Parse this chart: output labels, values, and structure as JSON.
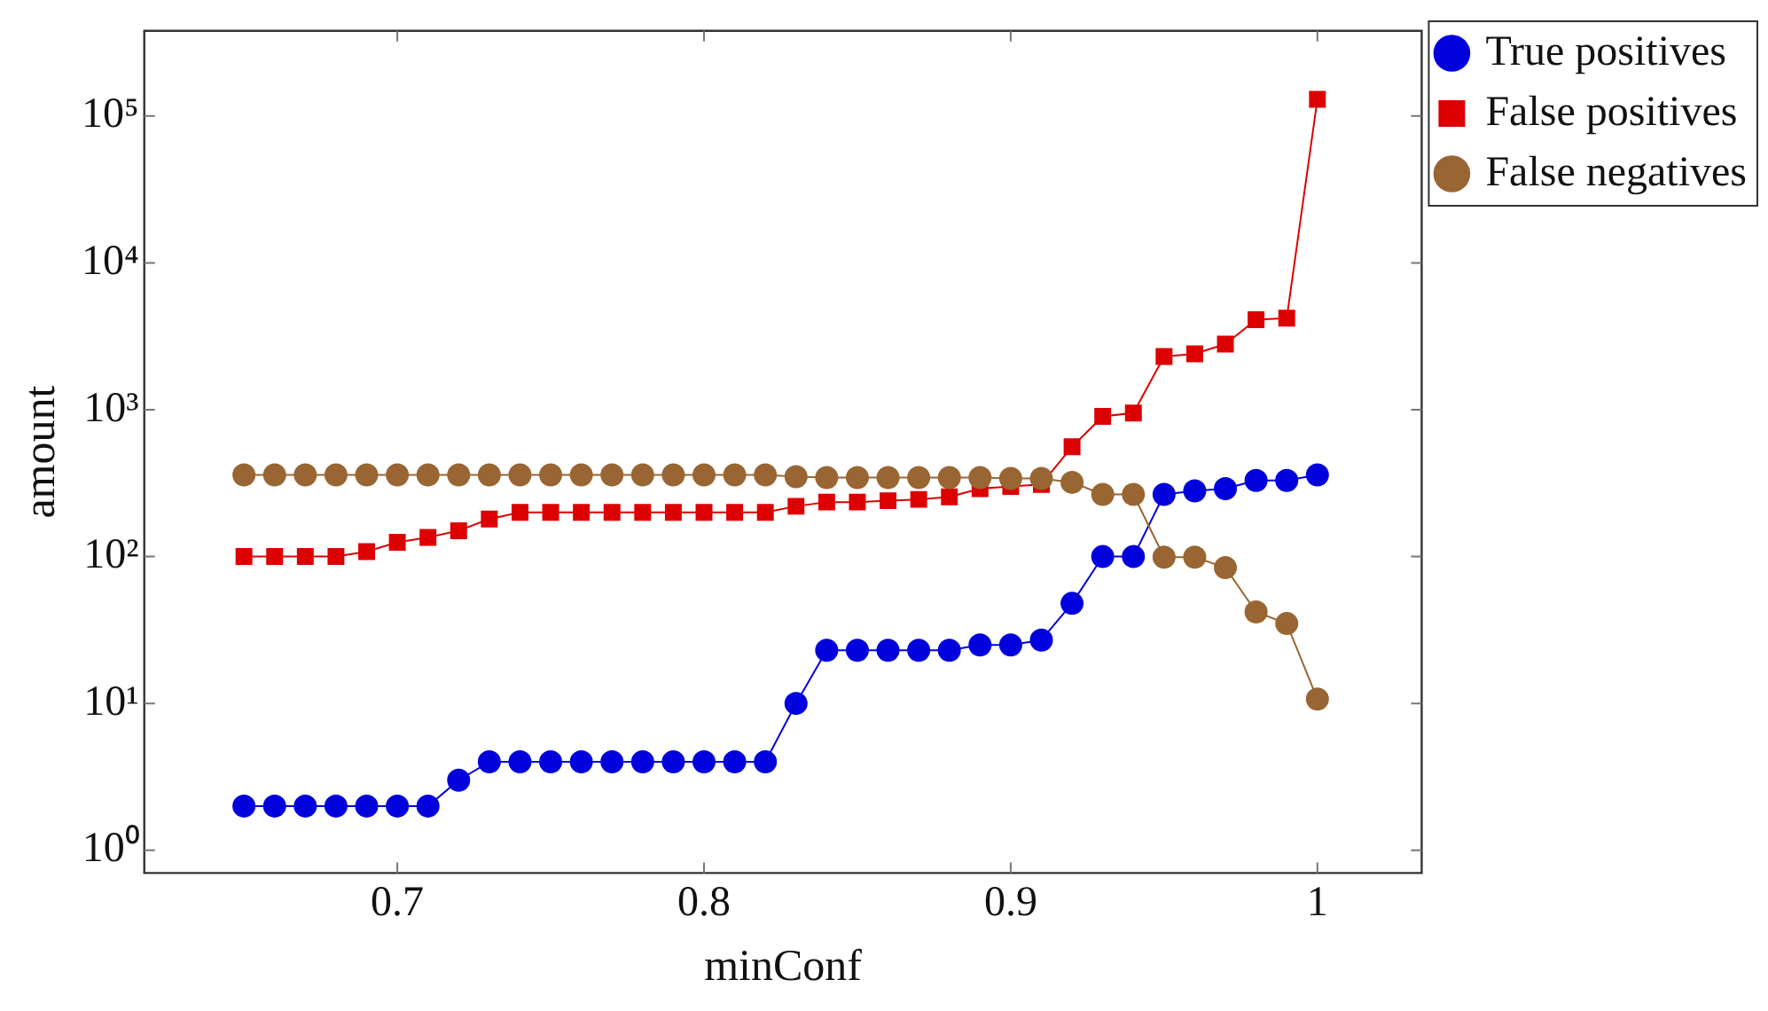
{
  "chart_data": {
    "type": "line",
    "xlabel": "minConf",
    "ylabel": "amount",
    "x": [
      0.65,
      0.66,
      0.67,
      0.68,
      0.69,
      0.7,
      0.71,
      0.72,
      0.73,
      0.74,
      0.75,
      0.76,
      0.77,
      0.78,
      0.79,
      0.8,
      0.81,
      0.82,
      0.83,
      0.84,
      0.85,
      0.86,
      0.87,
      0.88,
      0.89,
      0.9,
      0.91,
      0.92,
      0.93,
      0.94,
      0.95,
      0.96,
      0.97,
      0.98,
      0.99,
      1
    ],
    "series": [
      {
        "name": "True positives",
        "color": "#0000dd",
        "marker": "circle",
        "values": [
          2,
          2,
          2,
          2,
          2,
          2,
          2,
          3,
          4,
          4,
          4,
          4,
          4,
          4,
          4,
          4,
          4,
          4,
          10,
          23,
          23,
          23,
          23,
          23,
          25,
          25,
          27,
          48,
          100,
          100,
          265,
          280,
          290,
          330,
          330,
          360
        ]
      },
      {
        "name": "False positives",
        "color": "#dd0000",
        "marker": "square",
        "values": [
          100,
          100,
          100,
          100,
          108,
          125,
          135,
          150,
          180,
          200,
          200,
          200,
          200,
          200,
          200,
          200,
          200,
          200,
          220,
          235,
          235,
          240,
          245,
          255,
          290,
          300,
          310,
          560,
          900,
          950,
          2300,
          2400,
          2800,
          4100,
          4200,
          130000
        ]
      },
      {
        "name": "False negatives",
        "color": "#996633",
        "marker": "circle",
        "values": [
          360,
          360,
          360,
          360,
          360,
          360,
          360,
          360,
          360,
          360,
          360,
          360,
          360,
          360,
          360,
          360,
          360,
          360,
          350,
          345,
          345,
          345,
          345,
          345,
          345,
          340,
          340,
          320,
          265,
          265,
          99,
          99,
          84,
          42,
          35,
          10.7
        ]
      }
    ],
    "log": "y",
    "xlim": [
      0.6175,
      1.034
    ],
    "ylim": [
      0.72,
      380000
    ],
    "xticks": [
      0.7,
      0.8,
      0.9,
      1
    ],
    "yticks": [
      {
        "value": 1,
        "label": "10⁰"
      },
      {
        "value": 10,
        "label": "10¹"
      },
      {
        "value": 100,
        "label": "10²"
      },
      {
        "value": 1000,
        "label": "10³"
      },
      {
        "value": 10000,
        "label": "10⁴"
      },
      {
        "value": 100000,
        "label": "10⁵"
      }
    ],
    "grid": false,
    "legend": "top right",
    "line_style": "solid"
  }
}
